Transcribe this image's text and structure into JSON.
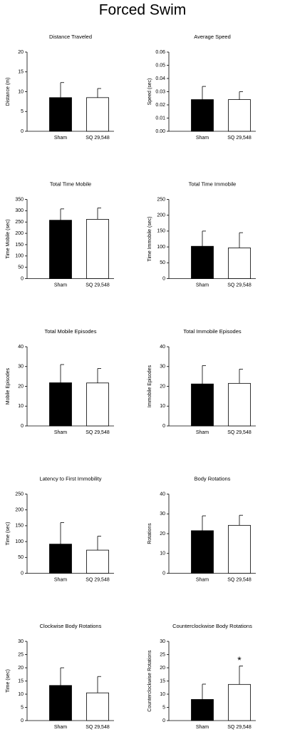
{
  "title": "Forced Swim",
  "chart_data": [
    {
      "type": "bar",
      "title": "Distance Traveled",
      "y_label": "Distance (m)",
      "categories": [
        "Sham",
        "SQ 29,548"
      ],
      "values": [
        8.5,
        8.5
      ],
      "errors": [
        3.8,
        2.3
      ],
      "colors": [
        "#000000",
        "#ffffff"
      ],
      "ylim": [
        0,
        20
      ],
      "yticks": [
        0,
        5,
        10,
        15,
        20
      ]
    },
    {
      "type": "bar",
      "title": "Average Speed",
      "y_label": "Speed (sec)",
      "categories": [
        "Sham",
        "SQ 29,548"
      ],
      "values": [
        0.024,
        0.024
      ],
      "errors": [
        0.01,
        0.006
      ],
      "colors": [
        "#000000",
        "#ffffff"
      ],
      "ylim": [
        0,
        0.06
      ],
      "yticks": [
        {
          "value": 0,
          "label": "0.00"
        },
        0.01,
        0.02,
        0.03,
        0.04,
        0.05,
        0.06
      ]
    },
    {
      "type": "bar",
      "title": "Total Time Mobile",
      "y_label": "Time Mobile (sec)",
      "categories": [
        "Sham",
        "SQ 29,548"
      ],
      "values": [
        258,
        262
      ],
      "errors": [
        50,
        50
      ],
      "colors": [
        "#000000",
        "#ffffff"
      ],
      "ylim": [
        0,
        350
      ],
      "yticks": [
        0,
        50,
        100,
        150,
        200,
        250,
        300,
        350
      ]
    },
    {
      "type": "bar",
      "title": "Total Time Immobile",
      "y_label": "Time Immobile (sec)",
      "categories": [
        "Sham",
        "SQ 29,548"
      ],
      "values": [
        102,
        97
      ],
      "errors": [
        48,
        48
      ],
      "colors": [
        "#000000",
        "#ffffff"
      ],
      "ylim": [
        0,
        250
      ],
      "yticks": [
        0,
        50,
        100,
        150,
        200,
        250
      ]
    },
    {
      "type": "bar",
      "title": "Total Mobile Episodes",
      "y_label": "Mobile Episodes",
      "categories": [
        "Sham",
        "SQ 29,548"
      ],
      "values": [
        21.8,
        21.7
      ],
      "errors": [
        9.2,
        7.3
      ],
      "colors": [
        "#000000",
        "#ffffff"
      ],
      "ylim": [
        0,
        40
      ],
      "yticks": [
        0,
        10,
        20,
        30,
        40
      ]
    },
    {
      "type": "bar",
      "title": "Total Immobile Episodes",
      "y_label": "Immobile Episodes",
      "categories": [
        "Sham",
        "SQ 29,548"
      ],
      "values": [
        21.2,
        21.5
      ],
      "errors": [
        9.3,
        7.2
      ],
      "colors": [
        "#000000",
        "#ffffff"
      ],
      "ylim": [
        0,
        40
      ],
      "yticks": [
        0,
        10,
        20,
        30,
        40
      ]
    },
    {
      "type": "bar",
      "title": "Latency to First Immobility",
      "y_label": "Time (sec)",
      "categories": [
        "Sham",
        "SQ 29,548"
      ],
      "values": [
        92,
        73
      ],
      "errors": [
        68,
        44
      ],
      "colors": [
        "#000000",
        "#ffffff"
      ],
      "ylim": [
        0,
        250
      ],
      "yticks": [
        0,
        50,
        100,
        150,
        200,
        250
      ]
    },
    {
      "type": "bar",
      "title": "Body Rotations",
      "y_label": "Rotations",
      "categories": [
        "Sham",
        "SQ 29,548"
      ],
      "values": [
        21.5,
        24.2
      ],
      "errors": [
        7.5,
        5.1
      ],
      "colors": [
        "#000000",
        "#ffffff"
      ],
      "ylim": [
        0,
        40
      ],
      "yticks": [
        0,
        10,
        20,
        30,
        40
      ]
    },
    {
      "type": "bar",
      "title": "Clockwise Body Rotations",
      "y_label": "Time (sec)",
      "categories": [
        "Sham",
        "SQ 29,548"
      ],
      "values": [
        13.3,
        10.5
      ],
      "errors": [
        6.7,
        6.2
      ],
      "colors": [
        "#000000",
        "#ffffff"
      ],
      "ylim": [
        0,
        30
      ],
      "yticks": [
        0,
        5,
        10,
        15,
        20,
        25,
        30
      ]
    },
    {
      "type": "bar",
      "title": "Counterclockwise Body Rotations",
      "y_label": "Counterclockwise Rotations",
      "categories": [
        "Sham",
        "SQ 29,548"
      ],
      "values": [
        8,
        13.7
      ],
      "errors": [
        5.8,
        7
      ],
      "colors": [
        "#000000",
        "#ffffff"
      ],
      "ylim": [
        0,
        30
      ],
      "yticks": [
        0,
        5,
        10,
        15,
        20,
        25,
        30
      ],
      "markers": [
        null,
        "*"
      ]
    }
  ]
}
